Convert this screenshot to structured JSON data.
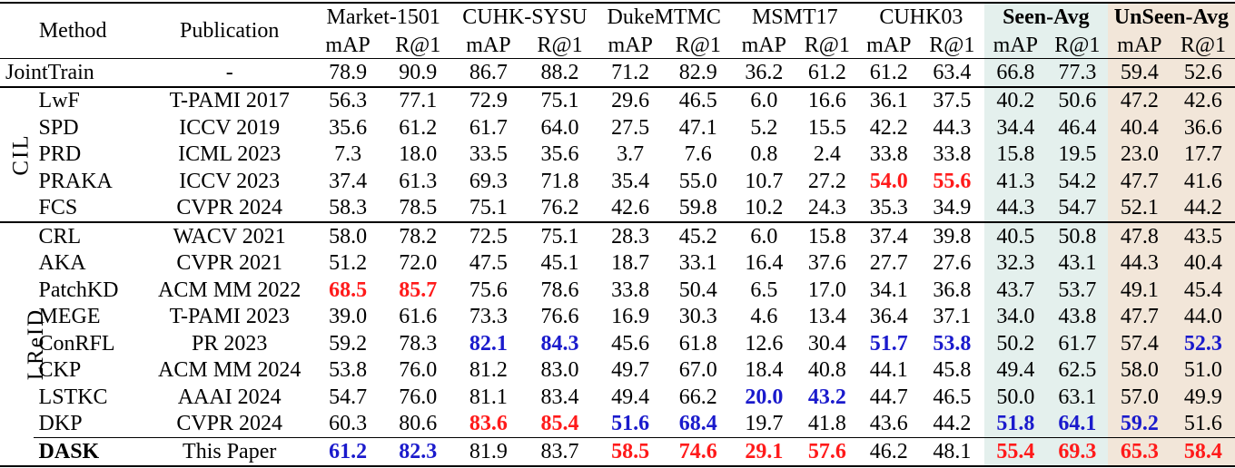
{
  "header": {
    "method": "Method",
    "publication": "Publication",
    "datasets": [
      "Market-1501",
      "CUHK-SYSU",
      "DukeMTMC",
      "MSMT17",
      "CUHK03",
      "Seen-Avg",
      "UnSeen-Avg"
    ],
    "metrics": [
      "mAP",
      "R@1"
    ]
  },
  "groups": {
    "cil": "CIL",
    "lreid": "LReID"
  },
  "colors": {
    "seen_bg": "#e4f0ed",
    "unseen_bg": "#f2e6d9",
    "best": "#ff1a1a",
    "second": "#1a1acc"
  },
  "rows": {
    "jointtrain": {
      "method": "JointTrain",
      "pub": "-",
      "vals": [
        "78.9",
        "90.9",
        "86.7",
        "88.2",
        "71.2",
        "82.9",
        "36.2",
        "61.2",
        "61.2",
        "63.4",
        "66.8",
        "77.3",
        "59.4",
        "52.6"
      ]
    },
    "cil": [
      {
        "method": "LwF",
        "pub": "T-PAMI 2017",
        "vals": [
          "56.3",
          "77.1",
          "72.9",
          "75.1",
          "29.6",
          "46.5",
          "6.0",
          "16.6",
          "36.1",
          "37.5",
          "40.2",
          "50.6",
          "47.2",
          "42.6"
        ]
      },
      {
        "method": "SPD",
        "pub": "ICCV 2019",
        "vals": [
          "35.6",
          "61.2",
          "61.7",
          "64.0",
          "27.5",
          "47.1",
          "5.2",
          "15.5",
          "42.2",
          "44.3",
          "34.4",
          "46.4",
          "40.4",
          "36.6"
        ]
      },
      {
        "method": "PRD",
        "pub": "ICML 2023",
        "vals": [
          "7.3",
          "18.0",
          "33.5",
          "35.6",
          "3.7",
          "7.6",
          "0.8",
          "2.4",
          "33.8",
          "33.8",
          "15.8",
          "19.5",
          "23.0",
          "17.7"
        ]
      },
      {
        "method": "PRAKA",
        "pub": "ICCV 2023",
        "vals": [
          "37.4",
          "61.3",
          "69.3",
          "71.8",
          "35.4",
          "55.0",
          "10.7",
          "27.2",
          "54.0",
          "55.6",
          "41.3",
          "54.2",
          "47.7",
          "41.6"
        ]
      },
      {
        "method": "FCS",
        "pub": "CVPR 2024",
        "vals": [
          "58.3",
          "78.5",
          "75.1",
          "76.2",
          "42.6",
          "59.8",
          "10.2",
          "24.3",
          "35.3",
          "34.9",
          "44.3",
          "54.7",
          "52.1",
          "44.2"
        ]
      }
    ],
    "lreid": [
      {
        "method": "CRL",
        "pub": "WACV 2021",
        "vals": [
          "58.0",
          "78.2",
          "72.5",
          "75.1",
          "28.3",
          "45.2",
          "6.0",
          "15.8",
          "37.4",
          "39.8",
          "40.5",
          "50.8",
          "47.8",
          "43.5"
        ]
      },
      {
        "method": "AKA",
        "pub": "CVPR 2021",
        "vals": [
          "51.2",
          "72.0",
          "47.5",
          "45.1",
          "18.7",
          "33.1",
          "16.4",
          "37.6",
          "27.7",
          "27.6",
          "32.3",
          "43.1",
          "44.3",
          "40.4"
        ]
      },
      {
        "method": "PatchKD",
        "pub": "ACM MM 2022",
        "vals": [
          "68.5",
          "85.7",
          "75.6",
          "78.6",
          "33.8",
          "50.4",
          "6.5",
          "17.0",
          "34.1",
          "36.8",
          "43.7",
          "53.7",
          "49.1",
          "45.4"
        ]
      },
      {
        "method": "MEGE",
        "pub": "T-PAMI 2023",
        "vals": [
          "39.0",
          "61.6",
          "73.3",
          "76.6",
          "16.9",
          "30.3",
          "4.6",
          "13.4",
          "36.4",
          "37.1",
          "34.0",
          "43.8",
          "47.7",
          "44.0"
        ]
      },
      {
        "method": "ConRFL",
        "pub": "PR 2023",
        "vals": [
          "59.2",
          "78.3",
          "82.1",
          "84.3",
          "45.6",
          "61.8",
          "12.6",
          "30.4",
          "51.7",
          "53.8",
          "50.2",
          "61.7",
          "57.4",
          "52.3"
        ]
      },
      {
        "method": "CKP",
        "pub": "ACM MM 2024",
        "vals": [
          "53.8",
          "76.0",
          "81.2",
          "83.0",
          "49.7",
          "67.0",
          "18.4",
          "40.8",
          "44.1",
          "45.8",
          "49.4",
          "62.5",
          "58.0",
          "51.0"
        ]
      },
      {
        "method": "LSTKC",
        "pub": "AAAI 2024",
        "vals": [
          "54.7",
          "76.0",
          "81.1",
          "83.4",
          "49.4",
          "66.2",
          "20.0",
          "43.2",
          "44.7",
          "46.5",
          "50.0",
          "63.1",
          "57.0",
          "49.9"
        ]
      },
      {
        "method": "DKP",
        "pub": "CVPR 2024",
        "vals": [
          "60.3",
          "80.6",
          "83.6",
          "85.4",
          "51.6",
          "68.4",
          "19.7",
          "41.8",
          "43.6",
          "44.2",
          "51.8",
          "64.1",
          "59.2",
          "51.6"
        ]
      }
    ],
    "dask": {
      "method": "DASK",
      "pub": "This Paper",
      "vals": [
        "61.2",
        "82.3",
        "81.9",
        "83.7",
        "58.5",
        "74.6",
        "29.1",
        "57.6",
        "46.2",
        "48.1",
        "55.4",
        "69.3",
        "65.3",
        "58.4"
      ]
    }
  }
}
